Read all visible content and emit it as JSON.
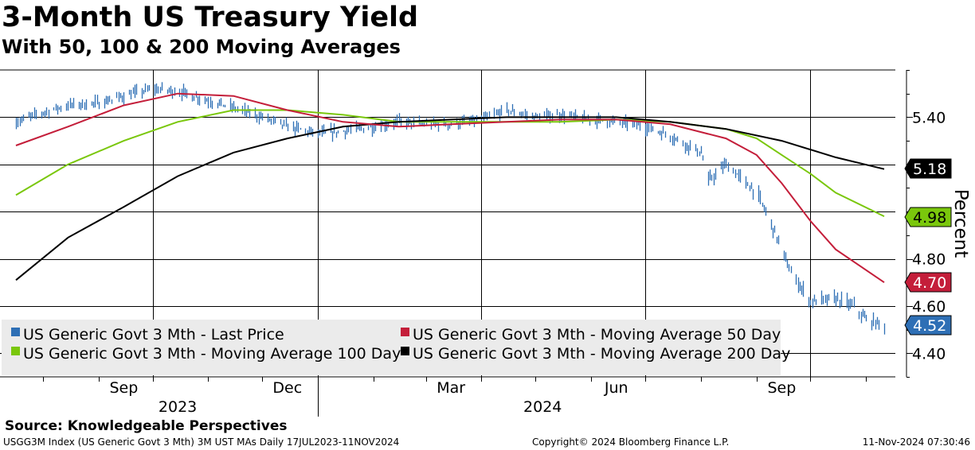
{
  "header": {
    "title": "3-Month US Treasury Yield",
    "subtitle": "With 50, 100 & 200 Moving Averages"
  },
  "footer": {
    "source": "Source: Knowledgeable Perspectives",
    "index_info": "USGG3M Index (US Generic Govt 3 Mth) 3M UST MAs  Daily 17JUL2023-11NOV2024",
    "copyright": "Copyright© 2024 Bloomberg Finance L.P.",
    "timestamp": "11-Nov-2024 07:30:46"
  },
  "colors": {
    "price": "#2e6fb5",
    "ma50": "#c41e3a",
    "ma100": "#7ac70c",
    "ma200": "#000000",
    "legend_bg": "#ebebeb",
    "grid": "#000000"
  },
  "chart_data": {
    "type": "line",
    "ylabel": "Percent",
    "ylim": [
      4.3,
      5.6
    ],
    "y_ticks": [
      "4.40",
      "4.60",
      "4.80",
      "5.40"
    ],
    "x_range": [
      "2023-07-17",
      "2024-11-11"
    ],
    "month_labels": [
      {
        "label": "Sep",
        "date": "2023-09-15"
      },
      {
        "label": "Dec",
        "date": "2023-12-15"
      },
      {
        "label": "Mar",
        "date": "2024-03-15"
      },
      {
        "label": "Jun",
        "date": "2024-06-15"
      },
      {
        "label": "Sep",
        "date": "2024-09-15"
      }
    ],
    "year_labels": [
      {
        "label": "2023",
        "date": "2023-10-15"
      },
      {
        "label": "2024",
        "date": "2024-05-05"
      }
    ],
    "year_divider": "2024-01-01",
    "series": [
      {
        "name": "US Generic Govt 3 Mth - Last Price",
        "key": "price",
        "style": "hlc_bars",
        "last": "4.52",
        "points": [
          [
            "2023-07-17",
            5.38
          ],
          [
            "2023-08-01",
            5.42
          ],
          [
            "2023-08-15",
            5.45
          ],
          [
            "2023-09-01",
            5.46
          ],
          [
            "2023-09-15",
            5.49
          ],
          [
            "2023-10-01",
            5.52
          ],
          [
            "2023-10-15",
            5.51
          ],
          [
            "2023-11-01",
            5.47
          ],
          [
            "2023-11-15",
            5.44
          ],
          [
            "2023-12-01",
            5.4
          ],
          [
            "2023-12-15",
            5.36
          ],
          [
            "2024-01-01",
            5.33
          ],
          [
            "2024-01-15",
            5.34
          ],
          [
            "2024-02-01",
            5.36
          ],
          [
            "2024-02-15",
            5.38
          ],
          [
            "2024-03-01",
            5.37
          ],
          [
            "2024-03-15",
            5.37
          ],
          [
            "2024-04-01",
            5.39
          ],
          [
            "2024-04-15",
            5.43
          ],
          [
            "2024-05-01",
            5.4
          ],
          [
            "2024-05-15",
            5.41
          ],
          [
            "2024-06-01",
            5.39
          ],
          [
            "2024-06-15",
            5.38
          ],
          [
            "2024-07-01",
            5.36
          ],
          [
            "2024-07-15",
            5.32
          ],
          [
            "2024-08-01",
            5.25
          ],
          [
            "2024-08-05",
            5.13
          ],
          [
            "2024-08-15",
            5.2
          ],
          [
            "2024-09-01",
            5.08
          ],
          [
            "2024-09-10",
            4.93
          ],
          [
            "2024-09-20",
            4.74
          ],
          [
            "2024-10-01",
            4.62
          ],
          [
            "2024-10-15",
            4.63
          ],
          [
            "2024-10-25",
            4.6
          ],
          [
            "2024-11-01",
            4.54
          ],
          [
            "2024-11-11",
            4.52
          ]
        ]
      },
      {
        "name": "US Generic Govt 3 Mth - Moving Average 50 Day",
        "key": "ma50",
        "style": "line",
        "last": "4.70",
        "points": [
          [
            "2023-07-17",
            5.28
          ],
          [
            "2023-08-15",
            5.36
          ],
          [
            "2023-09-15",
            5.45
          ],
          [
            "2023-10-15",
            5.5
          ],
          [
            "2023-11-15",
            5.49
          ],
          [
            "2023-12-15",
            5.43
          ],
          [
            "2024-01-15",
            5.38
          ],
          [
            "2024-02-15",
            5.36
          ],
          [
            "2024-03-15",
            5.37
          ],
          [
            "2024-04-15",
            5.38
          ],
          [
            "2024-05-15",
            5.39
          ],
          [
            "2024-06-15",
            5.39
          ],
          [
            "2024-07-15",
            5.37
          ],
          [
            "2024-08-15",
            5.31
          ],
          [
            "2024-09-01",
            5.24
          ],
          [
            "2024-09-15",
            5.12
          ],
          [
            "2024-10-01",
            4.96
          ],
          [
            "2024-10-15",
            4.84
          ],
          [
            "2024-11-11",
            4.7
          ]
        ]
      },
      {
        "name": "US Generic Govt 3 Mth - Moving Average 100 Day",
        "key": "ma100",
        "style": "line",
        "last": "4.98",
        "points": [
          [
            "2023-07-17",
            5.07
          ],
          [
            "2023-08-15",
            5.2
          ],
          [
            "2023-09-15",
            5.3
          ],
          [
            "2023-10-15",
            5.38
          ],
          [
            "2023-11-15",
            5.43
          ],
          [
            "2023-12-15",
            5.43
          ],
          [
            "2024-01-15",
            5.41
          ],
          [
            "2024-02-15",
            5.38
          ],
          [
            "2024-03-15",
            5.38
          ],
          [
            "2024-04-15",
            5.38
          ],
          [
            "2024-05-15",
            5.38
          ],
          [
            "2024-06-15",
            5.39
          ],
          [
            "2024-07-15",
            5.38
          ],
          [
            "2024-08-15",
            5.35
          ],
          [
            "2024-09-01",
            5.31
          ],
          [
            "2024-09-15",
            5.24
          ],
          [
            "2024-10-01",
            5.16
          ],
          [
            "2024-10-15",
            5.08
          ],
          [
            "2024-11-11",
            4.98
          ]
        ]
      },
      {
        "name": "US Generic Govt 3 Mth - Moving Average 200 Day",
        "key": "ma200",
        "style": "line",
        "last": "5.18",
        "points": [
          [
            "2023-07-17",
            4.71
          ],
          [
            "2023-08-15",
            4.89
          ],
          [
            "2023-09-15",
            5.02
          ],
          [
            "2023-10-15",
            5.15
          ],
          [
            "2023-11-15",
            5.25
          ],
          [
            "2023-12-15",
            5.31
          ],
          [
            "2024-01-15",
            5.36
          ],
          [
            "2024-02-15",
            5.38
          ],
          [
            "2024-03-15",
            5.39
          ],
          [
            "2024-04-15",
            5.4
          ],
          [
            "2024-05-15",
            5.4
          ],
          [
            "2024-06-15",
            5.4
          ],
          [
            "2024-07-15",
            5.38
          ],
          [
            "2024-08-15",
            5.35
          ],
          [
            "2024-09-15",
            5.3
          ],
          [
            "2024-10-15",
            5.23
          ],
          [
            "2024-11-11",
            5.18
          ]
        ]
      }
    ],
    "legend": {
      "placement": "bottom-left",
      "entries": [
        "US Generic Govt 3 Mth - Last Price",
        "US Generic Govt 3 Mth - Moving Average 50 Day",
        "US Generic Govt 3 Mth - Moving Average 100 Day",
        "US Generic Govt 3 Mth - Moving Average 200 Day"
      ]
    }
  }
}
